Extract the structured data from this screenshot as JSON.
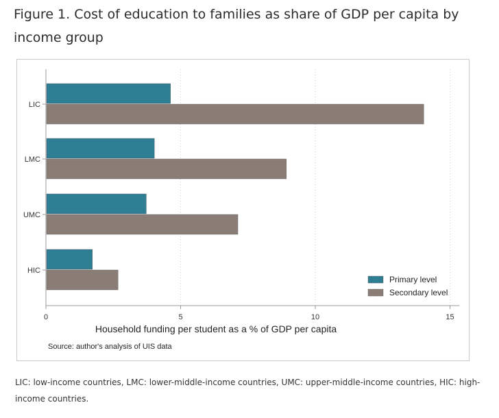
{
  "figure": {
    "title": "Figure 1. Cost of education to families as share of GDP per capita by income group",
    "footnote": "LIC: low-income countries, LMC: lower-middle-income countries, UMC: upper-middle-income countries, HIC: high-income countries."
  },
  "chart_data": {
    "type": "bar",
    "orientation": "horizontal",
    "categories": [
      "LIC",
      "LMC",
      "UMC",
      "HIC"
    ],
    "series": [
      {
        "name": "Primary level",
        "color": "#2e7f94",
        "values": [
          4.6,
          4.0,
          3.7,
          1.7
        ]
      },
      {
        "name": "Secondary level",
        "color": "#8a7d76",
        "values": [
          14.0,
          8.9,
          7.1,
          2.65
        ]
      }
    ],
    "xlabel": "Household funding per student as a % of GDP per capita",
    "ylabel": "",
    "xlim": [
      0,
      15
    ],
    "xticks": [
      0,
      5,
      10,
      15
    ],
    "grid": "vertical-dotted",
    "legend": "bottom-right",
    "source": "Source: author's analysis of UIS data"
  }
}
